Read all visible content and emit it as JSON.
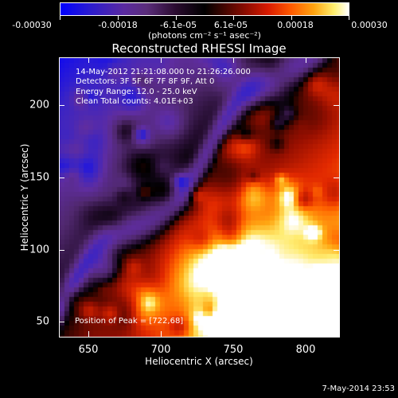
{
  "colorbar": {
    "tick_labels": [
      "-0.00030",
      "-0.00018",
      "-6.1e-05",
      "6.1e-05",
      "0.00018",
      "0.00030"
    ],
    "units": "(photons cm⁻² s⁻¹ asec⁻²)",
    "range": [
      -0.0003,
      0.0003
    ]
  },
  "plot": {
    "title": "Reconstructed RHESSI Image",
    "info": [
      "14-May-2012 21:21:08.000 to 21:26:26.000",
      "Detectors: 3F 5F 6F 7F 8F 9F, Att 0",
      "Energy Range: 12.0 - 25.0 keV",
      "Clean    Total counts: 4.01E+03"
    ],
    "peak_label": "Position of Peak = [722,68]",
    "x_axis": {
      "title": "Heliocentric X (arcsec)",
      "tick_labels": [
        "650",
        "700",
        "750",
        "800"
      ],
      "ticks": [
        650,
        700,
        750,
        800
      ],
      "range": [
        630,
        824
      ]
    },
    "y_axis": {
      "title": "Heliocentric Y (arcsec)",
      "tick_labels": [
        "50",
        "100",
        "150",
        "200"
      ],
      "ticks": [
        50,
        100,
        150,
        200
      ],
      "range": [
        37,
        231
      ]
    }
  },
  "footer": {
    "date_stamp": "7-May-2014 23:53"
  }
}
